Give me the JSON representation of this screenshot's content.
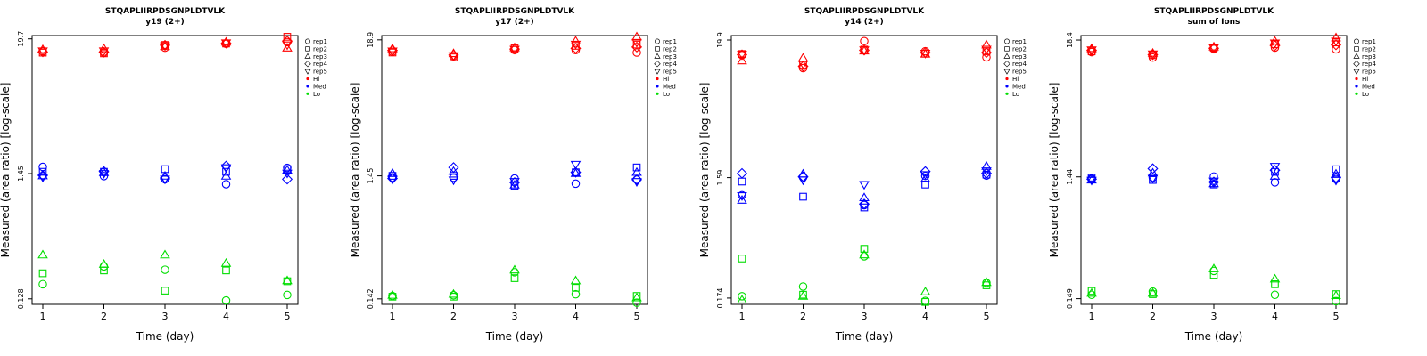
{
  "colors": {
    "Hi": "#ff0000",
    "Med": "#0000ff",
    "Lo": "#00dd00"
  },
  "legend": {
    "shapes": [
      "rep1",
      "rep2",
      "rep3",
      "rep4",
      "rep5"
    ],
    "colors": [
      "Hi",
      "Med",
      "Lo"
    ]
  },
  "chart_data": [
    {
      "type": "scatter",
      "title": "STQAPLIIRPDSGNPLDTVLK",
      "subtitle": "y19 (2+)",
      "xlabel": "Time (day)",
      "ylabel": "Measured (area ratio) [log-scale]",
      "x_ticks": [
        1,
        2,
        3,
        4,
        5
      ],
      "y_ticks": [
        {
          "v": 0.128,
          "label": "0.128"
        },
        {
          "v": 1.45,
          "label": "1.45"
        },
        {
          "v": 19.7,
          "label": "19.7"
        }
      ],
      "ylim": [
        0.115,
        21
      ],
      "series": [
        {
          "level": "Hi",
          "rep": "rep1",
          "values": [
            15.5,
            15.1,
            16.6,
            17.9,
            18.5
          ]
        },
        {
          "level": "Hi",
          "rep": "rep2",
          "values": [
            15.1,
            14.9,
            17.5,
            18.0,
            20.5
          ]
        },
        {
          "level": "Hi",
          "rep": "rep3",
          "values": [
            16.0,
            16.3,
            17.0,
            18.5,
            16.5
          ]
        },
        {
          "level": "Hi",
          "rep": "rep4",
          "values": [
            15.3,
            15.2,
            17.4,
            18.1,
            18.9
          ]
        },
        {
          "level": "Hi",
          "rep": "rep5",
          "values": [
            15.6,
            15.6,
            17.2,
            18.2,
            17.5
          ]
        },
        {
          "level": "Med",
          "rep": "rep1",
          "values": [
            1.65,
            1.38,
            1.3,
            1.18,
            1.62
          ]
        },
        {
          "level": "Med",
          "rep": "rep2",
          "values": [
            1.5,
            1.5,
            1.58,
            1.5,
            1.58
          ]
        },
        {
          "level": "Med",
          "rep": "rep3",
          "values": [
            1.39,
            1.48,
            1.38,
            1.38,
            1.55
          ]
        },
        {
          "level": "Med",
          "rep": "rep4",
          "values": [
            1.4,
            1.51,
            1.33,
            1.68,
            1.3
          ]
        },
        {
          "level": "Med",
          "rep": "rep5",
          "values": [
            1.35,
            1.45,
            1.3,
            1.62,
            1.46
          ]
        },
        {
          "level": "Lo",
          "rep": "rep1",
          "values": [
            0.17,
            0.24,
            0.225,
            0.124,
            0.138
          ]
        },
        {
          "level": "Lo",
          "rep": "rep2",
          "values": [
            0.21,
            0.222,
            0.15,
            0.222,
            0.18
          ]
        },
        {
          "level": "Lo",
          "rep": "rep3",
          "values": [
            0.3,
            0.25,
            0.3,
            0.255,
            0.182
          ]
        }
      ]
    },
    {
      "type": "scatter",
      "title": "STQAPLIIRPDSGNPLDTVLK",
      "subtitle": "y17 (2+)",
      "xlabel": "Time (day)",
      "ylabel": "Measured (area ratio) [log-scale]",
      "x_ticks": [
        1,
        2,
        3,
        4,
        5
      ],
      "y_ticks": [
        {
          "v": 0.142,
          "label": "0.142"
        },
        {
          "v": 1.45,
          "label": "1.45"
        },
        {
          "v": 18.9,
          "label": "18.9"
        }
      ],
      "ylim": [
        0.128,
        20.5
      ],
      "series": [
        {
          "level": "Hi",
          "rep": "rep1",
          "values": [
            15.1,
            13.9,
            15.6,
            15.6,
            14.9
          ]
        },
        {
          "level": "Hi",
          "rep": "rep2",
          "values": [
            14.9,
            13.6,
            16.1,
            16.9,
            17.3
          ]
        },
        {
          "level": "Hi",
          "rep": "rep3",
          "values": [
            16.0,
            14.6,
            16.3,
            18.5,
            20.0
          ]
        },
        {
          "level": "Hi",
          "rep": "rep4",
          "values": [
            15.5,
            14.2,
            15.9,
            16.1,
            16.5
          ]
        },
        {
          "level": "Hi",
          "rep": "rep5",
          "values": [
            15.3,
            14.0,
            15.8,
            17.4,
            18.0
          ]
        },
        {
          "level": "Med",
          "rep": "rep1",
          "values": [
            1.4,
            1.4,
            1.38,
            1.25,
            1.35
          ]
        },
        {
          "level": "Med",
          "rep": "rep2",
          "values": [
            1.45,
            1.45,
            1.2,
            1.55,
            1.7
          ]
        },
        {
          "level": "Med",
          "rep": "rep3",
          "values": [
            1.52,
            1.58,
            1.22,
            1.52,
            1.55
          ]
        },
        {
          "level": "Med",
          "rep": "rep4",
          "values": [
            1.38,
            1.7,
            1.28,
            1.55,
            1.35
          ]
        },
        {
          "level": "Med",
          "rep": "rep5",
          "values": [
            1.36,
            1.34,
            1.3,
            1.8,
            1.3
          ]
        },
        {
          "level": "Lo",
          "rep": "rep1",
          "values": [
            0.15,
            0.152,
            0.235,
            0.155,
            0.132
          ]
        },
        {
          "level": "Lo",
          "rep": "rep2",
          "values": [
            0.148,
            0.148,
            0.21,
            0.175,
            0.15
          ]
        },
        {
          "level": "Lo",
          "rep": "rep3",
          "values": [
            0.152,
            0.155,
            0.245,
            0.2,
            0.145
          ]
        }
      ]
    },
    {
      "type": "scatter",
      "title": "STQAPLIIRPDSGNPLDTVLK",
      "subtitle": "y14 (2+)",
      "xlabel": "Time (day)",
      "ylabel": "Measured (area ratio) [log-scale]",
      "x_ticks": [
        1,
        2,
        3,
        4,
        5
      ],
      "y_ticks": [
        {
          "v": 0.174,
          "label": "0.174"
        },
        {
          "v": 1.59,
          "label": "1.59"
        },
        {
          "v": 19.9,
          "label": "19.9"
        }
      ],
      "ylim": [
        0.155,
        21.6
      ],
      "series": [
        {
          "level": "Hi",
          "rep": "rep1",
          "values": [
            15.1,
            11.9,
            19.5,
            16.2,
            14.5
          ]
        },
        {
          "level": "Hi",
          "rep": "rep2",
          "values": [
            15.4,
            12.6,
            16.7,
            15.5,
            16.2
          ]
        },
        {
          "level": "Hi",
          "rep": "rep3",
          "values": [
            13.6,
            14.3,
            16.3,
            15.4,
            18.2
          ]
        },
        {
          "level": "Hi",
          "rep": "rep4",
          "values": [
            15.2,
            12.3,
            16.5,
            15.8,
            15.8
          ]
        },
        {
          "level": "Hi",
          "rep": "rep5",
          "values": [
            15.3,
            12.8,
            16.6,
            15.6,
            16.8
          ]
        },
        {
          "level": "Med",
          "rep": "rep1",
          "values": [
            1.15,
            1.6,
            0.96,
            1.64,
            1.65
          ]
        },
        {
          "level": "Med",
          "rep": "rep2",
          "values": [
            1.48,
            1.12,
            0.92,
            1.4,
            1.68
          ]
        },
        {
          "level": "Med",
          "rep": "rep3",
          "values": [
            1.05,
            1.7,
            1.1,
            1.55,
            1.96
          ]
        },
        {
          "level": "Med",
          "rep": "rep4",
          "values": [
            1.72,
            1.62,
            0.98,
            1.78,
            1.72
          ]
        },
        {
          "level": "Med",
          "rep": "rep5",
          "values": [
            1.14,
            1.52,
            1.4,
            1.68,
            1.8
          ]
        },
        {
          "level": "Lo",
          "rep": "rep1",
          "values": [
            0.18,
            0.215,
            0.375,
            0.165,
            0.23
          ]
        },
        {
          "level": "Lo",
          "rep": "rep2",
          "values": [
            0.36,
            0.185,
            0.43,
            0.162,
            0.22
          ]
        },
        {
          "level": "Lo",
          "rep": "rep3",
          "values": [
            0.168,
            0.18,
            0.385,
            0.195,
            0.232
          ]
        }
      ]
    },
    {
      "type": "scatter",
      "title": "STQAPLIIRPDSGNPLDTVLK",
      "subtitle": "sum of Ions",
      "xlabel": "Time (day)",
      "ylabel": "Measured (area ratio) [log-scale]",
      "x_ticks": [
        1,
        2,
        3,
        4,
        5
      ],
      "y_ticks": [
        {
          "v": 0.149,
          "label": "0.149"
        },
        {
          "v": 1.44,
          "label": "1.44"
        },
        {
          "v": 18.4,
          "label": "18.4"
        }
      ],
      "ylim": [
        0.134,
        20.0
      ],
      "series": [
        {
          "level": "Hi",
          "rep": "rep1",
          "values": [
            14.7,
            13.3,
            15.6,
            16.0,
            15.5
          ]
        },
        {
          "level": "Hi",
          "rep": "rep2",
          "values": [
            14.9,
            13.9,
            16.0,
            17.0,
            17.6
          ]
        },
        {
          "level": "Hi",
          "rep": "rep3",
          "values": [
            15.7,
            14.4,
            16.2,
            18.0,
            19.2
          ]
        },
        {
          "level": "Hi",
          "rep": "rep4",
          "values": [
            15.2,
            14.0,
            15.8,
            16.6,
            16.8
          ]
        },
        {
          "level": "Hi",
          "rep": "rep5",
          "values": [
            15.3,
            14.2,
            15.9,
            17.4,
            18.0
          ]
        },
        {
          "level": "Med",
          "rep": "rep1",
          "values": [
            1.4,
            1.42,
            1.45,
            1.3,
            1.38
          ]
        },
        {
          "level": "Med",
          "rep": "rep2",
          "values": [
            1.42,
            1.36,
            1.25,
            1.58,
            1.66
          ]
        },
        {
          "level": "Med",
          "rep": "rep3",
          "values": [
            1.36,
            1.55,
            1.27,
            1.46,
            1.52
          ]
        },
        {
          "level": "Med",
          "rep": "rep4",
          "values": [
            1.38,
            1.68,
            1.31,
            1.63,
            1.42
          ]
        },
        {
          "level": "Med",
          "rep": "rep5",
          "values": [
            1.35,
            1.4,
            1.33,
            1.75,
            1.35
          ]
        },
        {
          "level": "Lo",
          "rep": "rep1",
          "values": [
            0.16,
            0.17,
            0.25,
            0.16,
            0.142
          ]
        },
        {
          "level": "Lo",
          "rep": "rep2",
          "values": [
            0.172,
            0.162,
            0.232,
            0.195,
            0.162
          ]
        },
        {
          "level": "Lo",
          "rep": "rep3",
          "values": [
            0.165,
            0.165,
            0.26,
            0.215,
            0.158
          ]
        }
      ]
    }
  ]
}
